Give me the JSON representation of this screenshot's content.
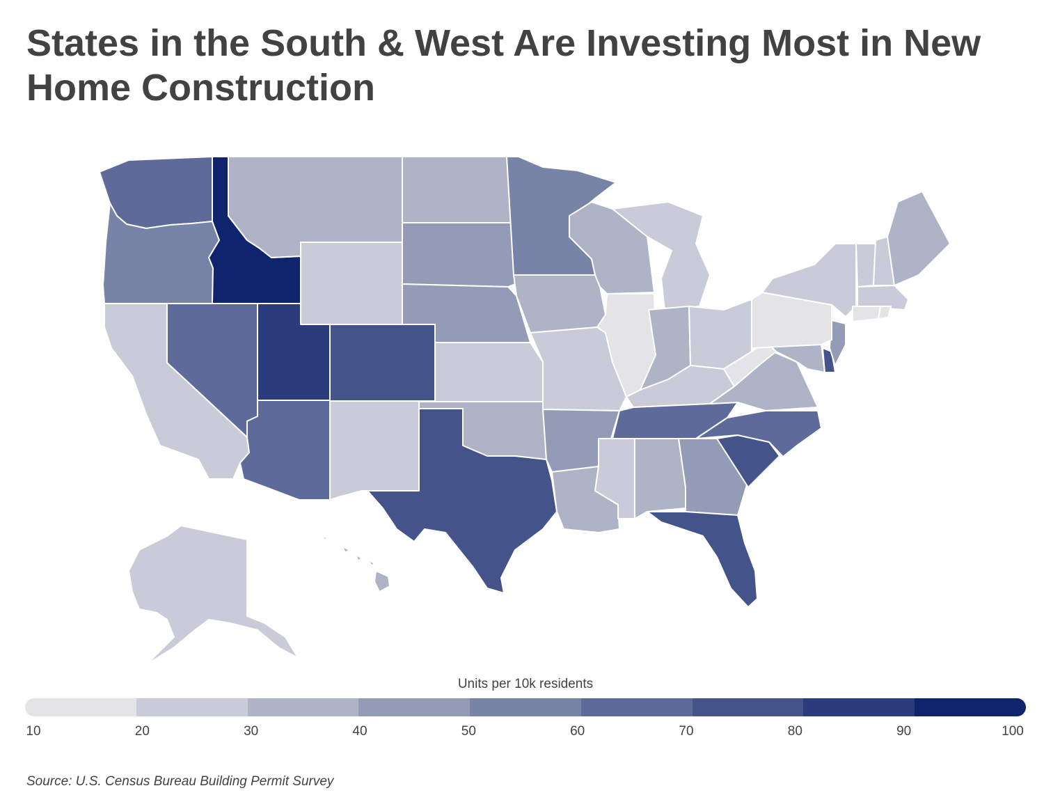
{
  "title": "States in the South & West Are Investing Most in New Home Construction",
  "legend": {
    "title": "Units per 10k residents",
    "ticks": [
      "10",
      "20",
      "30",
      "40",
      "50",
      "60",
      "70",
      "80",
      "90",
      "100"
    ],
    "bins": [
      {
        "range": [
          10,
          20
        ],
        "color": "#e4e4e6"
      },
      {
        "range": [
          20,
          30
        ],
        "color": "#c9ccd8"
      },
      {
        "range": [
          30,
          40
        ],
        "color": "#aeb3c6"
      },
      {
        "range": [
          40,
          50
        ],
        "color": "#939bb7"
      },
      {
        "range": [
          50,
          60
        ],
        "color": "#7883a8"
      },
      {
        "range": [
          60,
          70
        ],
        "color": "#5e6b9a"
      },
      {
        "range": [
          70,
          80
        ],
        "color": "#44548b"
      },
      {
        "range": [
          80,
          90
        ],
        "color": "#2a3c7c"
      },
      {
        "range": [
          90,
          100
        ],
        "color": "#10236d"
      }
    ]
  },
  "source": "Source: U.S. Census Bureau Building Permit Survey",
  "map_data": {
    "type": "choropleth",
    "measure": "Units per 10k residents",
    "states_by_bin": {
      "10-20": [
        "Illinois",
        "Pennsylvania",
        "West Virginia",
        "Connecticut",
        "Rhode Island"
      ],
      "20-30": [
        "California",
        "Wyoming",
        "New Mexico",
        "Kansas",
        "Missouri",
        "Mississippi",
        "Michigan",
        "Ohio",
        "Kentucky",
        "New York",
        "Vermont",
        "New Hampshire",
        "Massachusetts",
        "Alaska"
      ],
      "30-40": [
        "Montana",
        "North Dakota",
        "Oklahoma",
        "Iowa",
        "Wisconsin",
        "Indiana",
        "Alabama",
        "Louisiana",
        "Virginia",
        "Maryland",
        "Maine",
        "Hawaii"
      ],
      "40-50": [
        "South Dakota",
        "Nebraska",
        "Arkansas",
        "Georgia",
        "New Jersey"
      ],
      "50-60": [
        "Oregon",
        "Minnesota"
      ],
      "60-70": [
        "Washington",
        "Nevada",
        "Arizona",
        "Tennessee",
        "North Carolina"
      ],
      "70-80": [
        "Colorado",
        "Texas",
        "Florida",
        "South Carolina",
        "Delaware"
      ],
      "80-90": [
        "Utah"
      ],
      "90-100": [
        "Idaho"
      ]
    }
  }
}
